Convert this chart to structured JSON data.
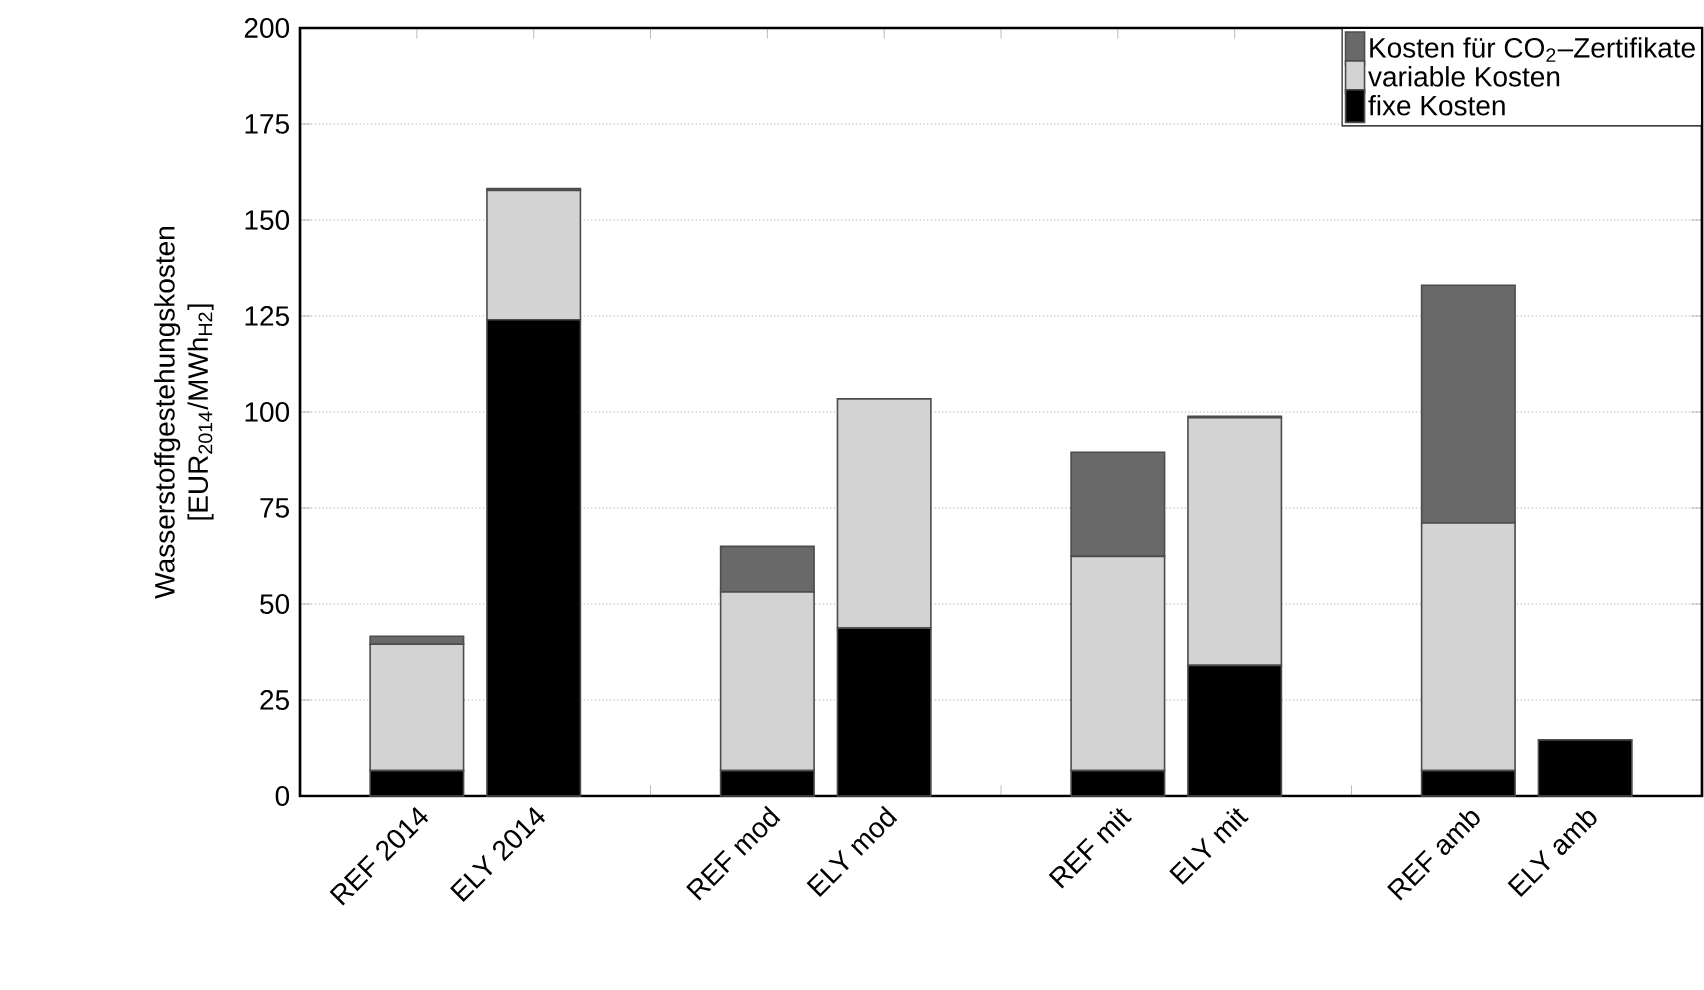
{
  "chart_data": {
    "type": "bar",
    "stacked": true,
    "ylabel": "Wasserstoffgestehungskosten [EUR$_{2014}$/MWh$_{H2}$]",
    "categories": [
      "REF 2014",
      "ELY 2014",
      null,
      "REF mod",
      "ELY mod",
      null,
      "REF mit",
      "ELY mit",
      null,
      "REF amb",
      "ELY amb"
    ],
    "series": [
      {
        "name": "fixe Kosten",
        "color": "#000000",
        "values": [
          6.6,
          124.0,
          null,
          6.6,
          43.7,
          null,
          6.6,
          34.0,
          null,
          6.6,
          14.6
        ]
      },
      {
        "name": "variable Kosten",
        "color": "#d3d3d3",
        "values": [
          32.9,
          33.7,
          null,
          46.5,
          59.7,
          null,
          55.8,
          64.5,
          null,
          64.5,
          0
        ]
      },
      {
        "name": "Kosten für CO$_{2}$–Zertifikate",
        "color": "#696969",
        "values": [
          2.1,
          0.5,
          null,
          11.9,
          0,
          null,
          27.1,
          0.4,
          null,
          61.9,
          0
        ]
      }
    ],
    "ylim": [
      0,
      200
    ],
    "yticks": [
      0,
      25,
      50,
      75,
      100,
      125,
      150,
      175,
      200
    ],
    "grid": "y",
    "legend": "top right"
  }
}
